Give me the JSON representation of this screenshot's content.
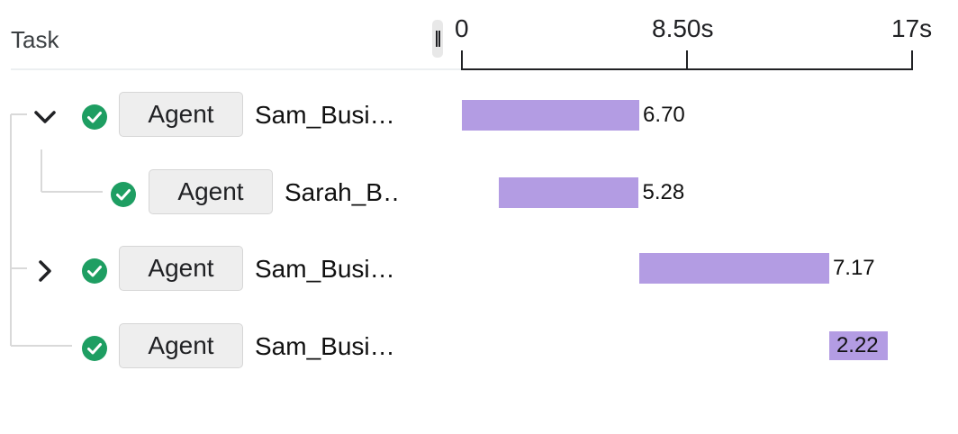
{
  "header": {
    "task_label": "Task"
  },
  "axis": {
    "unit": "s",
    "max": 17,
    "ticks": [
      "0",
      "8.50s",
      "17s"
    ]
  },
  "colors": {
    "bar": "#b39ce3",
    "status_ok": "#1e9e62",
    "tree_line": "#d9d9d9"
  },
  "rows": [
    {
      "kind": "Agent",
      "name": "Sam_Busi…",
      "status": "check-circle",
      "expander": "expanded",
      "start": 0,
      "duration": 6.7,
      "label": "6.70"
    },
    {
      "kind": "Agent",
      "name": "Sarah_B…",
      "status": "check-circle",
      "expander": "none",
      "start": 1.4,
      "duration": 5.28,
      "label": "5.28"
    },
    {
      "kind": "Agent",
      "name": "Sam_Busi…",
      "status": "check-circle",
      "expander": "collapsed",
      "start": 6.7,
      "duration": 7.17,
      "label": "7.17"
    },
    {
      "kind": "Agent",
      "name": "Sam_Busi…",
      "status": "check-circle",
      "expander": "none",
      "start": 13.87,
      "duration": 2.22,
      "label": "2.22"
    }
  ]
}
